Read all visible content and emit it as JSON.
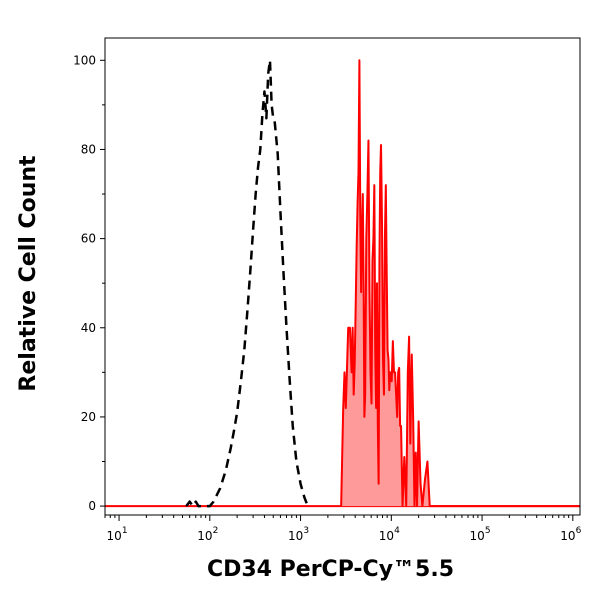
{
  "chart_data": {
    "type": "area",
    "xlabel": "CD34 PerCP-Cy™5.5",
    "ylabel": "Relative Cell Count",
    "xscale": "log",
    "xlim": [
      7,
      1200000
    ],
    "ylim": [
      -2,
      105
    ],
    "x_ticks": [
      {
        "value": 10,
        "base": "10",
        "exp": "1"
      },
      {
        "value": 100,
        "base": "10",
        "exp": "2"
      },
      {
        "value": 1000,
        "base": "10",
        "exp": "3"
      },
      {
        "value": 10000,
        "base": "10",
        "exp": "4"
      },
      {
        "value": 100000,
        "base": "10",
        "exp": "5"
      },
      {
        "value": 1000000,
        "base": "10",
        "exp": "6"
      }
    ],
    "y_ticks": [
      0,
      20,
      40,
      60,
      80,
      100
    ],
    "grid": false,
    "colors": {
      "stained_line": "#ff0000",
      "stained_fill": "#ff9a9a",
      "control_line": "#000000",
      "axis": "#000000"
    },
    "series": [
      {
        "style": "dashed",
        "points": [
          [
            55,
            0
          ],
          [
            60,
            1
          ],
          [
            65,
            0
          ],
          [
            70,
            1
          ],
          [
            75,
            0
          ],
          [
            100,
            0
          ],
          [
            110,
            1
          ],
          [
            130,
            4
          ],
          [
            150,
            8
          ],
          [
            170,
            13
          ],
          [
            185,
            17
          ],
          [
            200,
            21
          ],
          [
            220,
            28
          ],
          [
            240,
            35
          ],
          [
            260,
            44
          ],
          [
            280,
            53
          ],
          [
            300,
            62
          ],
          [
            320,
            70
          ],
          [
            340,
            76
          ],
          [
            360,
            80
          ],
          [
            380,
            88
          ],
          [
            400,
            93
          ],
          [
            420,
            87
          ],
          [
            440,
            97
          ],
          [
            460,
            100
          ],
          [
            480,
            90
          ],
          [
            500,
            87
          ],
          [
            520,
            86
          ],
          [
            560,
            79
          ],
          [
            600,
            66
          ],
          [
            650,
            52
          ],
          [
            700,
            40
          ],
          [
            760,
            28
          ],
          [
            820,
            18
          ],
          [
            900,
            10
          ],
          [
            1000,
            5
          ],
          [
            1100,
            2
          ],
          [
            1200,
            0
          ]
        ]
      },
      {
        "style": "filled",
        "points": [
          [
            2800,
            0
          ],
          [
            2950,
            22
          ],
          [
            3050,
            30
          ],
          [
            3150,
            22
          ],
          [
            3250,
            31
          ],
          [
            3350,
            40
          ],
          [
            3500,
            40
          ],
          [
            3650,
            30
          ],
          [
            3750,
            40
          ],
          [
            3850,
            25
          ],
          [
            3950,
            32
          ],
          [
            4050,
            45
          ],
          [
            4150,
            58
          ],
          [
            4250,
            68
          ],
          [
            4350,
            75
          ],
          [
            4450,
            100
          ],
          [
            4550,
            65
          ],
          [
            4650,
            48
          ],
          [
            4750,
            62
          ],
          [
            4850,
            70
          ],
          [
            4950,
            50
          ],
          [
            5050,
            20
          ],
          [
            5150,
            25
          ],
          [
            5300,
            60
          ],
          [
            5450,
            70
          ],
          [
            5600,
            82
          ],
          [
            5750,
            48
          ],
          [
            5900,
            30
          ],
          [
            6050,
            23
          ],
          [
            6200,
            55
          ],
          [
            6350,
            60
          ],
          [
            6500,
            72
          ],
          [
            6650,
            35
          ],
          [
            6800,
            22
          ],
          [
            6950,
            50
          ],
          [
            7100,
            18
          ],
          [
            7250,
            5
          ],
          [
            7400,
            55
          ],
          [
            7550,
            75
          ],
          [
            7700,
            81
          ],
          [
            7900,
            63
          ],
          [
            8100,
            33
          ],
          [
            8300,
            25
          ],
          [
            8500,
            60
          ],
          [
            8700,
            72
          ],
          [
            8900,
            52
          ],
          [
            9100,
            35
          ],
          [
            9300,
            33
          ],
          [
            9500,
            26
          ],
          [
            9700,
            30
          ],
          [
            9900,
            30
          ],
          [
            10100,
            28
          ],
          [
            10400,
            37
          ],
          [
            10700,
            30
          ],
          [
            11000,
            30
          ],
          [
            11300,
            25
          ],
          [
            11600,
            20
          ],
          [
            11900,
            30
          ],
          [
            12200,
            31
          ],
          [
            12500,
            18
          ],
          [
            12800,
            18
          ],
          [
            13300,
            0
          ],
          [
            13900,
            11
          ],
          [
            14600,
            0
          ],
          [
            15200,
            30
          ],
          [
            15700,
            38
          ],
          [
            16200,
            14
          ],
          [
            16800,
            34
          ],
          [
            17400,
            20
          ],
          [
            18000,
            0
          ],
          [
            18600,
            12
          ],
          [
            19200,
            0
          ],
          [
            20000,
            19
          ],
          [
            21000,
            5
          ],
          [
            22000,
            0
          ],
          [
            23500,
            6
          ],
          [
            25000,
            10
          ],
          [
            26500,
            0
          ],
          [
            1200000,
            0
          ]
        ]
      }
    ]
  }
}
